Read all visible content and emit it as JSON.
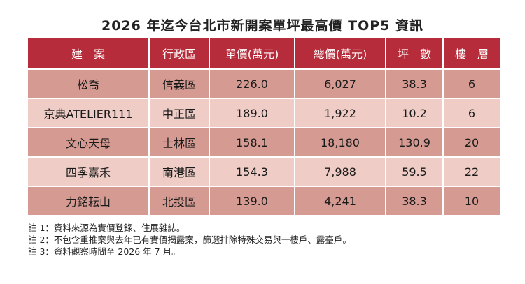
{
  "title": "2026 年迄今台北市新開案單坪最高價 TOP5 資訊",
  "table": {
    "headers": [
      "建　案",
      "行政區",
      "單價(萬元)",
      "總價(萬元)",
      "坪　數",
      "樓　層"
    ],
    "rows": [
      [
        "松喬",
        "信義區",
        "226.0",
        "6,027",
        "38.3",
        "6"
      ],
      [
        "京典ATELIER111",
        "中正區",
        "189.0",
        "1,922",
        "10.2",
        "6"
      ],
      [
        "文心天母",
        "士林區",
        "158.1",
        "18,180",
        "130.9",
        "20"
      ],
      [
        "四季嘉禾",
        "南港區",
        "154.3",
        "7,988",
        "59.5",
        "22"
      ],
      [
        "力銘耘山",
        "北投區",
        "139.0",
        "4,241",
        "38.3",
        "10"
      ]
    ]
  },
  "notes": [
    "註 1：資料來源為實價登錄、住展雜誌。",
    "註 2：不包含重推案與去年已有實價揭露案，篩選排除特殊交易與一樓戶、露臺戶。",
    "註 3：資料觀察時間至 2026 年 7 月。"
  ],
  "colors": {
    "header_bg": "#b72c3a",
    "row_dark": "#d59b92",
    "row_light": "#efcdc6"
  }
}
